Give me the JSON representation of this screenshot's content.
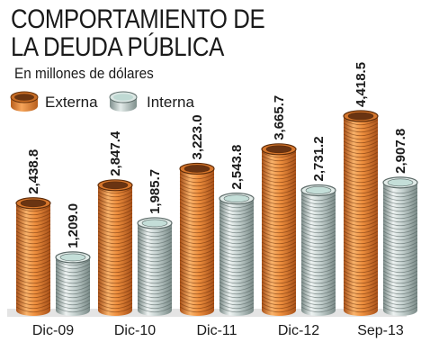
{
  "title_line1": "COMPORTAMIENTO DE",
  "title_line2": "LA DEUDA PÚBLICA",
  "subtitle": "En millones de dólares",
  "legend": [
    {
      "label": "Externa",
      "color": "#e07f2e"
    },
    {
      "label": "Interna",
      "color": "#b7c7c5"
    }
  ],
  "chart_data": {
    "type": "bar",
    "categories": [
      "Dic-09",
      "Dic-10",
      "Dic-11",
      "Dic-12",
      "Sep-13"
    ],
    "series": [
      {
        "name": "Externa",
        "values": [
          2438.8,
          2847.4,
          3223.0,
          3665.7,
          4418.5
        ],
        "labels": [
          "2,438.8",
          "2,847.4",
          "3,223.0",
          "3,665.7",
          "4,418.5"
        ]
      },
      {
        "name": "Interna",
        "values": [
          1209.0,
          1985.7,
          2543.8,
          2731.2,
          2907.8
        ],
        "labels": [
          "1,209.0",
          "1,985.7",
          "2,543.8",
          "2,731.2",
          "2,907.8"
        ]
      }
    ],
    "title": "COMPORTAMIENTO DE LA DEUDA PÚBLICA",
    "ylabel": "En millones de dólares",
    "ylim": [
      0,
      4418.5
    ],
    "grid": false,
    "legend_position": "top-left"
  }
}
